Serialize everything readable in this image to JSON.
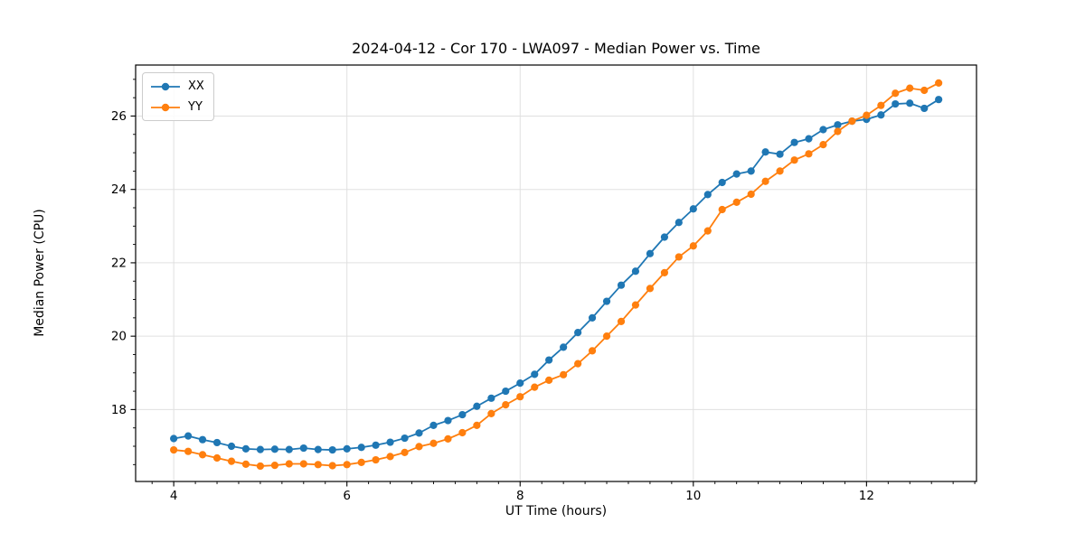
{
  "figure": {
    "title": "2024-04-12 - Cor 170 - LWA097 - Median Power vs. Time"
  },
  "chart_data": {
    "type": "line",
    "title": "2024-04-12 - Cor 170 - LWA097 - Median Power vs. Time",
    "xlabel": "UT Time (hours)",
    "ylabel": "Median Power (CPU)",
    "xlim": [
      3.56,
      13.27
    ],
    "ylim": [
      16.04,
      27.39
    ],
    "x_major_ticks": [
      4,
      6,
      8,
      10,
      12
    ],
    "x_minor_tick_step": 0.25,
    "y_major_ticks": [
      18,
      20,
      22,
      24,
      26
    ],
    "y_minor_tick_step": 0.5,
    "grid": true,
    "legend_position": "upper left",
    "x": [
      4.0,
      4.167,
      4.333,
      4.5,
      4.667,
      4.833,
      5.0,
      5.167,
      5.333,
      5.5,
      5.667,
      5.833,
      6.0,
      6.167,
      6.333,
      6.5,
      6.667,
      6.833,
      7.0,
      7.167,
      7.333,
      7.5,
      7.667,
      7.833,
      8.0,
      8.167,
      8.333,
      8.5,
      8.667,
      8.833,
      9.0,
      9.167,
      9.333,
      9.5,
      9.667,
      9.833,
      10.0,
      10.167,
      10.333,
      10.5,
      10.667,
      10.833,
      11.0,
      11.167,
      11.333,
      11.5,
      11.667,
      11.833,
      12.0,
      12.167,
      12.333,
      12.5,
      12.667,
      12.833
    ],
    "series": [
      {
        "name": "XX",
        "color": "#1f77b4",
        "values": [
          17.21,
          17.28,
          17.18,
          17.1,
          17.0,
          16.93,
          16.91,
          16.92,
          16.91,
          16.95,
          16.91,
          16.9,
          16.93,
          16.97,
          17.03,
          17.11,
          17.22,
          17.36,
          17.57,
          17.7,
          17.86,
          18.09,
          18.31,
          18.5,
          18.72,
          18.96,
          19.35,
          19.7,
          20.1,
          20.5,
          20.95,
          21.39,
          21.77,
          22.25,
          22.7,
          23.1,
          23.47,
          23.86,
          24.19,
          24.42,
          24.5,
          25.02,
          24.96,
          25.28,
          25.38,
          25.63,
          25.76,
          25.86,
          25.91,
          26.03,
          26.33,
          26.35,
          26.21,
          26.45
        ]
      },
      {
        "name": "YY",
        "color": "#ff7f0e",
        "values": [
          16.9,
          16.86,
          16.77,
          16.68,
          16.59,
          16.51,
          16.46,
          16.48,
          16.52,
          16.52,
          16.5,
          16.47,
          16.5,
          16.56,
          16.63,
          16.72,
          16.83,
          16.99,
          17.08,
          17.2,
          17.37,
          17.57,
          17.89,
          18.13,
          18.35,
          18.61,
          18.8,
          18.95,
          19.25,
          19.6,
          20.0,
          20.4,
          20.85,
          21.3,
          21.73,
          22.16,
          22.46,
          22.87,
          23.45,
          23.65,
          23.87,
          24.22,
          24.5,
          24.8,
          24.97,
          25.22,
          25.58,
          25.86,
          26.02,
          26.29,
          26.62,
          26.76,
          26.7,
          26.9
        ]
      }
    ]
  },
  "colors": {
    "grid": "#e0e0e0",
    "spine": "#000000",
    "background": "#ffffff",
    "series_xx": "#1f77b4",
    "series_yy": "#ff7f0e"
  }
}
